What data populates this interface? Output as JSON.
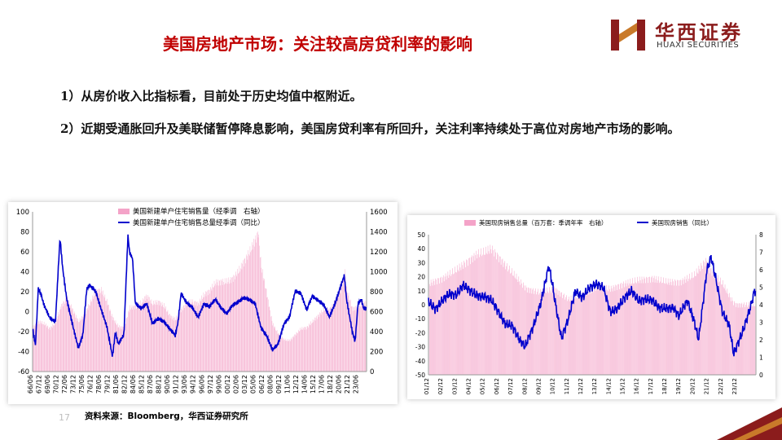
{
  "header": {
    "title": "美国房地产市场：关注较高房贷利率的影响",
    "logo_cn": "华西证券",
    "logo_en": "HUAXI SECURITIES"
  },
  "bullets": [
    "1）从房价收入比指标看，目前处于历史均值中枢附近。",
    "2）近期受通胀回升及美联储暂停降息影响，美国房贷利率有所回升，关注利率持续处于高位对房地产市场的影响。"
  ],
  "footer": {
    "page_number": "17",
    "source": "资料来源：Bloomberg，华西证券研究所"
  },
  "colors": {
    "title_red": "#c00000",
    "bar_pink": "#f4a3c8",
    "line_blue": "#0000cc",
    "logo_red": "#8b1c1c"
  },
  "chart_data": [
    {
      "type": "bar+line",
      "legend_position": "top-center",
      "series": [
        {
          "name": "美国新建单户住宅销售量（经季调　右轴）",
          "kind": "bar",
          "axis": "right",
          "points": [
            [
              1966,
              440
            ],
            [
              1967,
              500
            ],
            [
              1968,
              480
            ],
            [
              1969,
              430
            ],
            [
              1970,
              490
            ],
            [
              1971,
              660
            ],
            [
              1972,
              730
            ],
            [
              1973,
              620
            ],
            [
              1974,
              500
            ],
            [
              1975,
              560
            ],
            [
              1976,
              680
            ],
            [
              1977,
              800
            ],
            [
              1978,
              820
            ],
            [
              1979,
              700
            ],
            [
              1980,
              540
            ],
            [
              1981,
              450
            ],
            [
              1982,
              440
            ],
            [
              1983,
              640
            ],
            [
              1984,
              650
            ],
            [
              1985,
              690
            ],
            [
              1986,
              760
            ],
            [
              1987,
              680
            ],
            [
              1988,
              700
            ],
            [
              1989,
              660
            ],
            [
              1990,
              560
            ],
            [
              1991,
              520
            ],
            [
              1992,
              620
            ],
            [
              1993,
              690
            ],
            [
              1994,
              700
            ],
            [
              1995,
              680
            ],
            [
              1996,
              770
            ],
            [
              1997,
              810
            ],
            [
              1998,
              890
            ],
            [
              1999,
              900
            ],
            [
              2000,
              900
            ],
            [
              2001,
              930
            ],
            [
              2002,
              1000
            ],
            [
              2003,
              1100
            ],
            [
              2004,
              1200
            ],
            [
              2005,
              1320
            ],
            [
              2005.5,
              1400
            ],
            [
              2006,
              1060
            ],
            [
              2007,
              780
            ],
            [
              2008,
              480
            ],
            [
              2009,
              380
            ],
            [
              2010,
              320
            ],
            [
              2011,
              310
            ],
            [
              2012,
              370
            ],
            [
              2013,
              430
            ],
            [
              2014,
              440
            ],
            [
              2015,
              500
            ],
            [
              2016,
              560
            ],
            [
              2017,
              620
            ],
            [
              2018,
              620
            ],
            [
              2019,
              700
            ],
            [
              2020,
              830
            ],
            [
              2020.7,
              1000
            ],
            [
              2021,
              820
            ],
            [
              2022,
              630
            ],
            [
              2023,
              650
            ],
            [
              2024,
              690
            ]
          ]
        },
        {
          "name": "美国新建单户住宅销售总量经季调（同比）",
          "kind": "line",
          "axis": "left",
          "points": [
            [
              1966,
              -18
            ],
            [
              1966.5,
              -35
            ],
            [
              1967,
              22
            ],
            [
              1967.5,
              15
            ],
            [
              1968,
              5
            ],
            [
              1969,
              -8
            ],
            [
              1970,
              -12
            ],
            [
              1970.8,
              72
            ],
            [
              1971.3,
              40
            ],
            [
              1972,
              10
            ],
            [
              1973,
              -15
            ],
            [
              1974,
              -38
            ],
            [
              1974.8,
              -25
            ],
            [
              1975.5,
              22
            ],
            [
              1976,
              25
            ],
            [
              1977,
              20
            ],
            [
              1978,
              2
            ],
            [
              1979,
              -15
            ],
            [
              1980,
              -45
            ],
            [
              1980.5,
              -20
            ],
            [
              1981,
              -32
            ],
            [
              1982,
              -22
            ],
            [
              1982.7,
              78
            ],
            [
              1983,
              60
            ],
            [
              1983.5,
              55
            ],
            [
              1984,
              10
            ],
            [
              1985,
              5
            ],
            [
              1986,
              10
            ],
            [
              1987,
              -10
            ],
            [
              1988,
              -5
            ],
            [
              1989,
              -8
            ],
            [
              1990,
              -15
            ],
            [
              1991,
              -22
            ],
            [
              1991.5,
              -8
            ],
            [
              1992,
              20
            ],
            [
              1993,
              10
            ],
            [
              1994,
              5
            ],
            [
              1995,
              -5
            ],
            [
              1996,
              8
            ],
            [
              1997,
              5
            ],
            [
              1998,
              12
            ],
            [
              1999,
              3
            ],
            [
              2000,
              -3
            ],
            [
              2001,
              5
            ],
            [
              2002,
              8
            ],
            [
              2003,
              12
            ],
            [
              2004,
              10
            ],
            [
              2005,
              6
            ],
            [
              2006,
              -18
            ],
            [
              2007,
              -26
            ],
            [
              2008,
              -40
            ],
            [
              2009,
              -34
            ],
            [
              2010,
              -14
            ],
            [
              2011,
              -6
            ],
            [
              2012,
              20
            ],
            [
              2013,
              18
            ],
            [
              2014,
              2
            ],
            [
              2015,
              16
            ],
            [
              2016,
              12
            ],
            [
              2017,
              8
            ],
            [
              2018,
              -4
            ],
            [
              2019,
              10
            ],
            [
              2020,
              28
            ],
            [
              2020.6,
              38
            ],
            [
              2021,
              14
            ],
            [
              2022,
              -18
            ],
            [
              2022.5,
              -28
            ],
            [
              2023,
              10
            ],
            [
              2023.6,
              14
            ],
            [
              2024,
              5
            ]
          ]
        }
      ],
      "y_left": {
        "min": -60,
        "max": 100,
        "ticks": [
          -60,
          -40,
          -20,
          0,
          20,
          40,
          60,
          80,
          100
        ]
      },
      "y_right": {
        "min": 0,
        "max": 1600,
        "ticks": [
          0,
          200,
          400,
          600,
          800,
          1000,
          1200,
          1400,
          1600
        ]
      },
      "x_range": [
        1966,
        2024.5
      ],
      "x_ticks": [
        [
          1966,
          "66/06"
        ],
        [
          1967.5,
          "67/12"
        ],
        [
          1969,
          "69/06"
        ],
        [
          1970.5,
          "70/12"
        ],
        [
          1972,
          "72/06"
        ],
        [
          1973.5,
          "73/12"
        ],
        [
          1975,
          "75/06"
        ],
        [
          1976.5,
          "76/12"
        ],
        [
          1978,
          "78/06"
        ],
        [
          1979.5,
          "79/12"
        ],
        [
          1981,
          "81/06"
        ],
        [
          1982.5,
          "82/12"
        ],
        [
          1984,
          "84/06"
        ],
        [
          1985.5,
          "85/12"
        ],
        [
          1987,
          "87/06"
        ],
        [
          1988.5,
          "88/12"
        ],
        [
          1990,
          "90/06"
        ],
        [
          1991.5,
          "91/12"
        ],
        [
          1993,
          "93/06"
        ],
        [
          1994.5,
          "94/12"
        ],
        [
          1996,
          "96/06"
        ],
        [
          1997.5,
          "97/12"
        ],
        [
          1999,
          "99/06"
        ],
        [
          2000.5,
          "00/12"
        ],
        [
          2002,
          "02/06"
        ],
        [
          2003.5,
          "03/12"
        ],
        [
          2005,
          "05/06"
        ],
        [
          2006.5,
          "06/12"
        ],
        [
          2008,
          "08/06"
        ],
        [
          2009.5,
          "09/12"
        ],
        [
          2011,
          "11/06"
        ],
        [
          2012.5,
          "12/12"
        ],
        [
          2014,
          "14/06"
        ],
        [
          2015.5,
          "15/12"
        ],
        [
          2017,
          "17/06"
        ],
        [
          2018.5,
          "18/12"
        ],
        [
          2020,
          "20/06"
        ],
        [
          2021.5,
          "21/12"
        ],
        [
          2023,
          "23/06"
        ]
      ]
    },
    {
      "type": "bar+line",
      "legend_position": "top-center",
      "series": [
        {
          "name": "美国现房销售总量（百万套：季调年率　右轴）",
          "kind": "bar",
          "axis": "right",
          "points": [
            [
              2001,
              5.2
            ],
            [
              2002,
              5.5
            ],
            [
              2003,
              6.0
            ],
            [
              2004,
              6.6
            ],
            [
              2004.5,
              6.9
            ],
            [
              2005,
              7.0
            ],
            [
              2005.5,
              7.2
            ],
            [
              2006,
              6.7
            ],
            [
              2007,
              5.8
            ],
            [
              2008,
              4.9
            ],
            [
              2009,
              4.7
            ],
            [
              2010,
              4.9
            ],
            [
              2011,
              4.3
            ],
            [
              2012,
              4.6
            ],
            [
              2013,
              5.0
            ],
            [
              2014,
              4.9
            ],
            [
              2015,
              5.2
            ],
            [
              2016,
              5.4
            ],
            [
              2017,
              5.5
            ],
            [
              2018,
              5.3
            ],
            [
              2019,
              5.3
            ],
            [
              2020,
              5.7
            ],
            [
              2020.8,
              6.5
            ],
            [
              2021,
              6.1
            ],
            [
              2022,
              5.2
            ],
            [
              2022.8,
              4.1
            ],
            [
              2023,
              4.0
            ],
            [
              2024,
              4.0
            ]
          ]
        },
        {
          "name": "美国现房销售（同比）",
          "kind": "line",
          "axis": "left",
          "points": [
            [
              2001,
              2
            ],
            [
              2001.5,
              -3
            ],
            [
              2002,
              3
            ],
            [
              2002.5,
              8
            ],
            [
              2003,
              7
            ],
            [
              2003.5,
              14
            ],
            [
              2004,
              10
            ],
            [
              2004.5,
              6
            ],
            [
              2005,
              6
            ],
            [
              2005.5,
              3
            ],
            [
              2006,
              -5
            ],
            [
              2006.5,
              -14
            ],
            [
              2007,
              -15
            ],
            [
              2007.5,
              -25
            ],
            [
              2007.9,
              -30
            ],
            [
              2008.5,
              -15
            ],
            [
              2009,
              0
            ],
            [
              2009.6,
              28
            ],
            [
              2009.9,
              12
            ],
            [
              2010,
              5
            ],
            [
              2010.5,
              -24
            ],
            [
              2011,
              -10
            ],
            [
              2011.5,
              10
            ],
            [
              2012,
              5
            ],
            [
              2012.5,
              12
            ],
            [
              2013,
              15
            ],
            [
              2013.5,
              12
            ],
            [
              2014,
              -5
            ],
            [
              2014.5,
              -3
            ],
            [
              2015,
              5
            ],
            [
              2015.5,
              10
            ],
            [
              2016,
              3
            ],
            [
              2016.5,
              4
            ],
            [
              2017,
              3
            ],
            [
              2017.5,
              -2
            ],
            [
              2018,
              -3
            ],
            [
              2018.5,
              -2
            ],
            [
              2018.9,
              -8
            ],
            [
              2019.5,
              3
            ],
            [
              2020,
              -12
            ],
            [
              2020.3,
              -25
            ],
            [
              2020.9,
              25
            ],
            [
              2021.2,
              34
            ],
            [
              2021.5,
              20
            ],
            [
              2022,
              -5
            ],
            [
              2022.5,
              -15
            ],
            [
              2022.8,
              -35
            ],
            [
              2023,
              -30
            ],
            [
              2023.5,
              -18
            ],
            [
              2024,
              -2
            ],
            [
              2024.3,
              10
            ]
          ]
        }
      ],
      "y_left": {
        "min": -50,
        "max": 50,
        "ticks": [
          -50,
          -40,
          -30,
          -20,
          -10,
          0,
          10,
          20,
          30,
          40,
          50
        ]
      },
      "y_right": {
        "min": 0,
        "max": 8,
        "ticks": [
          0,
          1,
          2,
          3,
          4,
          5,
          6,
          7,
          8
        ]
      },
      "x_range": [
        2001,
        2024.4
      ],
      "x_ticks": [
        [
          2001,
          "01/12"
        ],
        [
          2002,
          "02/12"
        ],
        [
          2003,
          "03/12"
        ],
        [
          2004,
          "04/12"
        ],
        [
          2005,
          "05/12"
        ],
        [
          2006,
          "06/12"
        ],
        [
          2007,
          "07/12"
        ],
        [
          2008,
          "08/12"
        ],
        [
          2009,
          "09/12"
        ],
        [
          2010,
          "10/12"
        ],
        [
          2011,
          "11/12"
        ],
        [
          2012,
          "12/12"
        ],
        [
          2013,
          "13/12"
        ],
        [
          2014,
          "14/12"
        ],
        [
          2015,
          "15/12"
        ],
        [
          2016,
          "16/12"
        ],
        [
          2017,
          "17/12"
        ],
        [
          2018,
          "18/12"
        ],
        [
          2019,
          "19/12"
        ],
        [
          2020,
          "20/12"
        ],
        [
          2021,
          "21/12"
        ],
        [
          2022,
          "22/12"
        ],
        [
          2023,
          "23/12"
        ]
      ]
    }
  ]
}
